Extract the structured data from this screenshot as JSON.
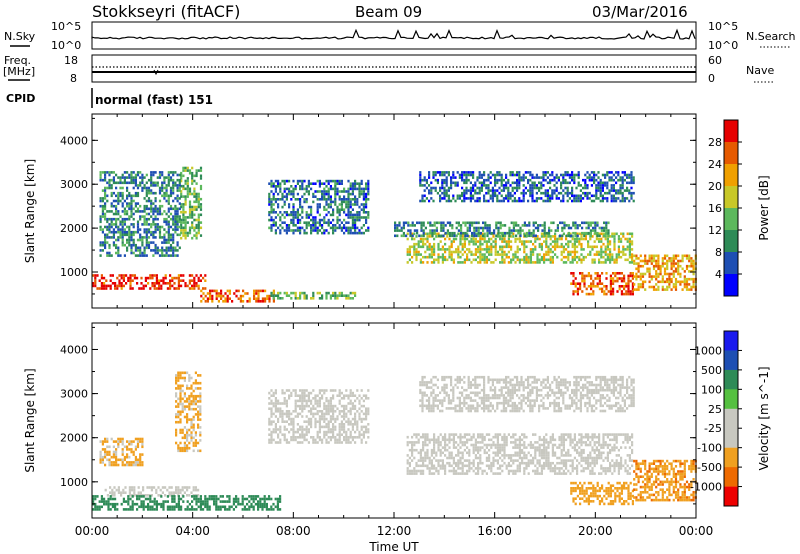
{
  "header": {
    "station": "Stokkseyri (fitACF)",
    "beam": "Beam 09",
    "date": "03/Mar/2016"
  },
  "strip_panels": {
    "noise": {
      "left_label": "N.Sky",
      "ticks_left": [
        "10^5",
        "10^0"
      ],
      "ticks_right": [
        "10^5",
        "10^0"
      ],
      "right_label": "N.Search"
    },
    "freq": {
      "left_label": "Freq.",
      "left_unit": "[MHz]",
      "ticks_left": [
        "18",
        "8"
      ],
      "ticks_right": [
        "60",
        "0"
      ],
      "right_label": "Nave"
    },
    "cpid": {
      "left_label": "CPID",
      "mode_text": "normal (fast) 151"
    }
  },
  "colors": {
    "power_scale": [
      "#0000ff",
      "#1e4fb3",
      "#2e8b57",
      "#5cb85c",
      "#c8c828",
      "#f0a000",
      "#e65a00",
      "#e60000"
    ],
    "velocity_scale": [
      "#ee0000",
      "#ee6a00",
      "#f0a020",
      "#c8c8c0",
      "#c8c8c0",
      "#55c040",
      "#2e8b57",
      "#1e4fb3",
      "#1a1aee"
    ]
  },
  "chart_data": [
    {
      "type": "heatmap",
      "title": "",
      "xlabel": "",
      "ylabel": "Slant Range [km]",
      "x_ticks": [
        "00:00",
        "04:00",
        "08:00",
        "12:00",
        "16:00",
        "20:00",
        "00:00"
      ],
      "y_ticks": [
        "1000",
        "2000",
        "3000",
        "4000"
      ],
      "xlim_hours": [
        0,
        24
      ],
      "ylim_km": [
        180,
        4600
      ],
      "colorbar": {
        "label": "Power [dB]",
        "ticks": [
          "4",
          "8",
          "12",
          "16",
          "20",
          "24",
          "28"
        ],
        "range": [
          0,
          32
        ]
      },
      "scatter_regions": [
        {
          "t0": 0.0,
          "t1": 4.5,
          "r0": 650,
          "r1": 950,
          "value": 28
        },
        {
          "t0": 4.3,
          "t1": 7.2,
          "r0": 350,
          "r1": 600,
          "value": 26
        },
        {
          "t0": 7.0,
          "t1": 10.5,
          "r0": 400,
          "r1": 550,
          "value": 14
        },
        {
          "t0": 12.5,
          "t1": 21.5,
          "r0": 1200,
          "r1": 1900,
          "value": 17
        },
        {
          "t0": 12.0,
          "t1": 20.5,
          "r0": 1850,
          "r1": 2150,
          "value": 10
        },
        {
          "t0": 19.0,
          "t1": 21.5,
          "r0": 500,
          "r1": 1000,
          "value": 27
        },
        {
          "t0": 21.5,
          "t1": 24.0,
          "r0": 600,
          "r1": 1400,
          "value": 22
        },
        {
          "t0": 7.0,
          "t1": 11.0,
          "r0": 1900,
          "r1": 3100,
          "value": 8
        },
        {
          "t0": 13.0,
          "t1": 21.5,
          "r0": 2600,
          "r1": 3300,
          "value": 7
        },
        {
          "t0": 3.5,
          "t1": 4.3,
          "r0": 1800,
          "r1": 3400,
          "value": 14
        },
        {
          "t0": 0.3,
          "t1": 3.5,
          "r0": 1400,
          "r1": 3300,
          "value": 9
        }
      ]
    },
    {
      "type": "heatmap",
      "title": "",
      "xlabel": "Time UT",
      "ylabel": "Slant Range [km]",
      "x_ticks": [
        "00:00",
        "04:00",
        "08:00",
        "12:00",
        "16:00",
        "20:00",
        "00:00"
      ],
      "y_ticks": [
        "1000",
        "2000",
        "3000",
        "4000"
      ],
      "xlim_hours": [
        0,
        24
      ],
      "ylim_km": [
        180,
        4600
      ],
      "colorbar": {
        "label": "Velocity [m s^-1]",
        "ticks": [
          "1000",
          "500",
          "100",
          "25",
          "-25",
          "-100",
          "-500",
          "-1000"
        ]
      },
      "scatter_regions": [
        {
          "t0": 0.5,
          "t1": 4.2,
          "r0": 700,
          "r1": 900,
          "value": 0
        },
        {
          "t0": 0.0,
          "t1": 7.5,
          "r0": 350,
          "r1": 700,
          "value": 300
        },
        {
          "t0": 12.5,
          "t1": 21.5,
          "r0": 1200,
          "r1": 2100,
          "value": 0
        },
        {
          "t0": 7.0,
          "t1": 11.0,
          "r0": 1900,
          "r1": 3100,
          "value": 0
        },
        {
          "t0": 13.0,
          "t1": 21.5,
          "r0": 2600,
          "r1": 3400,
          "value": 0
        },
        {
          "t0": 19.0,
          "t1": 21.5,
          "r0": 500,
          "r1": 1000,
          "value": -300
        },
        {
          "t0": 21.5,
          "t1": 24.0,
          "r0": 600,
          "r1": 1500,
          "value": -400
        },
        {
          "t0": 3.3,
          "t1": 4.3,
          "r0": 1700,
          "r1": 3500,
          "value": -200
        },
        {
          "t0": 0.3,
          "t1": 2.0,
          "r0": 1400,
          "r1": 2000,
          "value": -200
        }
      ]
    }
  ]
}
